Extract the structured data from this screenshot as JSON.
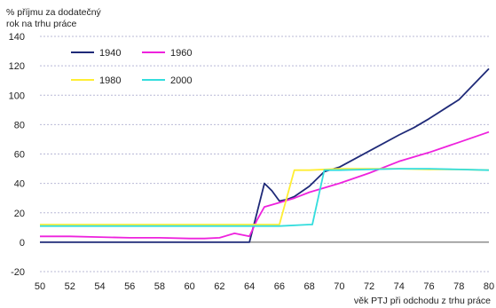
{
  "chart_data": {
    "type": "line",
    "ylabel": "% příjmu za dodatečný\nrok na trhu práce",
    "xlabel": "věk PTJ při odchodu z trhu práce",
    "xlim": [
      50,
      80
    ],
    "ylim": [
      -20,
      140
    ],
    "xticks": [
      "50",
      "52",
      "54",
      "56",
      "58",
      "60",
      "62",
      "64",
      "66",
      "68",
      "70",
      "72",
      "74",
      "76",
      "78",
      "80"
    ],
    "yticks": [
      "-20",
      "0",
      "20",
      "40",
      "60",
      "80",
      "100",
      "120",
      "140"
    ],
    "grid": "horizontal dashed",
    "legend_position": "top-left",
    "series": [
      {
        "name": "1940",
        "color": "#1f2a78",
        "points": [
          [
            50,
            0
          ],
          [
            52,
            0
          ],
          [
            54,
            0
          ],
          [
            56,
            0
          ],
          [
            58,
            0
          ],
          [
            60,
            0
          ],
          [
            62,
            0
          ],
          [
            64,
            0
          ],
          [
            64.5,
            20
          ],
          [
            65,
            40
          ],
          [
            65.5,
            35
          ],
          [
            66,
            28
          ],
          [
            66.5,
            29
          ],
          [
            67,
            31
          ],
          [
            68,
            38
          ],
          [
            69,
            48
          ],
          [
            70,
            51
          ],
          [
            72,
            62
          ],
          [
            74,
            73
          ],
          [
            75,
            78
          ],
          [
            76,
            84
          ],
          [
            78,
            97
          ],
          [
            80,
            118
          ]
        ]
      },
      {
        "name": "1960",
        "color": "#ee22dd",
        "points": [
          [
            50,
            4
          ],
          [
            52,
            4
          ],
          [
            54,
            3.5
          ],
          [
            56,
            3
          ],
          [
            58,
            3
          ],
          [
            60,
            2.5
          ],
          [
            61,
            2.5
          ],
          [
            62,
            3
          ],
          [
            63,
            6
          ],
          [
            64,
            4
          ],
          [
            64.5,
            15
          ],
          [
            65,
            24
          ],
          [
            66,
            27
          ],
          [
            67,
            30
          ],
          [
            68,
            34
          ],
          [
            69,
            37
          ],
          [
            70,
            40
          ],
          [
            72,
            47
          ],
          [
            74,
            55
          ],
          [
            76,
            61
          ],
          [
            78,
            68
          ],
          [
            80,
            75
          ]
        ]
      },
      {
        "name": "1980",
        "color": "#ffee33",
        "points": [
          [
            50,
            12
          ],
          [
            52,
            12
          ],
          [
            54,
            12
          ],
          [
            56,
            12
          ],
          [
            58,
            12
          ],
          [
            60,
            12
          ],
          [
            62,
            12
          ],
          [
            64,
            12
          ],
          [
            66,
            12
          ],
          [
            67,
            49
          ],
          [
            68,
            49
          ],
          [
            70,
            50
          ],
          [
            72,
            50
          ],
          [
            74,
            50
          ],
          [
            76,
            49.5
          ],
          [
            78,
            49.5
          ],
          [
            80,
            49
          ]
        ]
      },
      {
        "name": "2000",
        "color": "#33dddd",
        "points": [
          [
            50,
            11
          ],
          [
            52,
            11
          ],
          [
            54,
            11
          ],
          [
            56,
            11
          ],
          [
            58,
            11
          ],
          [
            60,
            11
          ],
          [
            62,
            11
          ],
          [
            64,
            11
          ],
          [
            66,
            11
          ],
          [
            68,
            12
          ],
          [
            68.2,
            12
          ],
          [
            69,
            49
          ],
          [
            70,
            49
          ],
          [
            72,
            49.5
          ],
          [
            74,
            50
          ],
          [
            76,
            50
          ],
          [
            78,
            49.5
          ],
          [
            80,
            49
          ]
        ]
      }
    ]
  }
}
